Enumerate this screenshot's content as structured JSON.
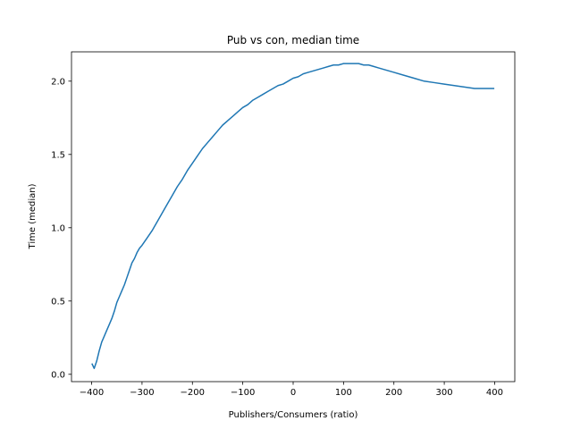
{
  "chart_data": {
    "type": "line",
    "title": "Pub vs con, median time",
    "xlabel": "Publishers/Consumers (ratio)",
    "ylabel": "Time (median)",
    "xlim": [
      -440,
      440
    ],
    "ylim": [
      -0.05,
      2.2
    ],
    "xticks": [
      -400,
      -300,
      -200,
      -100,
      0,
      100,
      200,
      300,
      400
    ],
    "xtick_labels": [
      "−400",
      "−300",
      "−200",
      "−100",
      "0",
      "100",
      "200",
      "300",
      "400"
    ],
    "yticks": [
      0.0,
      0.5,
      1.0,
      1.5,
      2.0
    ],
    "ytick_labels": [
      "0.0",
      "0.5",
      "1.0",
      "1.5",
      "2.0"
    ],
    "grid": false,
    "series": [
      {
        "color": "#1f77b4",
        "x": [
          -399,
          -395,
          -390,
          -385,
          -380,
          -375,
          -370,
          -365,
          -360,
          -355,
          -350,
          -345,
          -340,
          -335,
          -330,
          -325,
          -320,
          -315,
          -310,
          -305,
          -300,
          -290,
          -280,
          -270,
          -260,
          -250,
          -240,
          -230,
          -220,
          -210,
          -200,
          -190,
          -180,
          -170,
          -160,
          -150,
          -140,
          -130,
          -120,
          -110,
          -100,
          -90,
          -80,
          -70,
          -60,
          -50,
          -40,
          -30,
          -20,
          -10,
          0,
          10,
          20,
          30,
          40,
          50,
          60,
          70,
          80,
          90,
          100,
          110,
          120,
          130,
          140,
          150,
          160,
          170,
          180,
          190,
          200,
          220,
          240,
          260,
          280,
          300,
          320,
          340,
          360,
          380,
          398
        ],
        "y": [
          0.07,
          0.04,
          0.09,
          0.16,
          0.22,
          0.26,
          0.3,
          0.34,
          0.38,
          0.43,
          0.49,
          0.53,
          0.57,
          0.61,
          0.66,
          0.71,
          0.76,
          0.79,
          0.83,
          0.86,
          0.88,
          0.93,
          0.98,
          1.04,
          1.1,
          1.16,
          1.22,
          1.28,
          1.33,
          1.39,
          1.44,
          1.49,
          1.54,
          1.58,
          1.62,
          1.66,
          1.7,
          1.73,
          1.76,
          1.79,
          1.82,
          1.84,
          1.87,
          1.89,
          1.91,
          1.93,
          1.95,
          1.97,
          1.98,
          2.0,
          2.02,
          2.03,
          2.05,
          2.06,
          2.07,
          2.08,
          2.09,
          2.1,
          2.11,
          2.11,
          2.12,
          2.12,
          2.12,
          2.12,
          2.11,
          2.11,
          2.1,
          2.09,
          2.08,
          2.07,
          2.06,
          2.04,
          2.02,
          2.0,
          1.99,
          1.98,
          1.97,
          1.96,
          1.95,
          1.95,
          1.95
        ]
      }
    ]
  }
}
